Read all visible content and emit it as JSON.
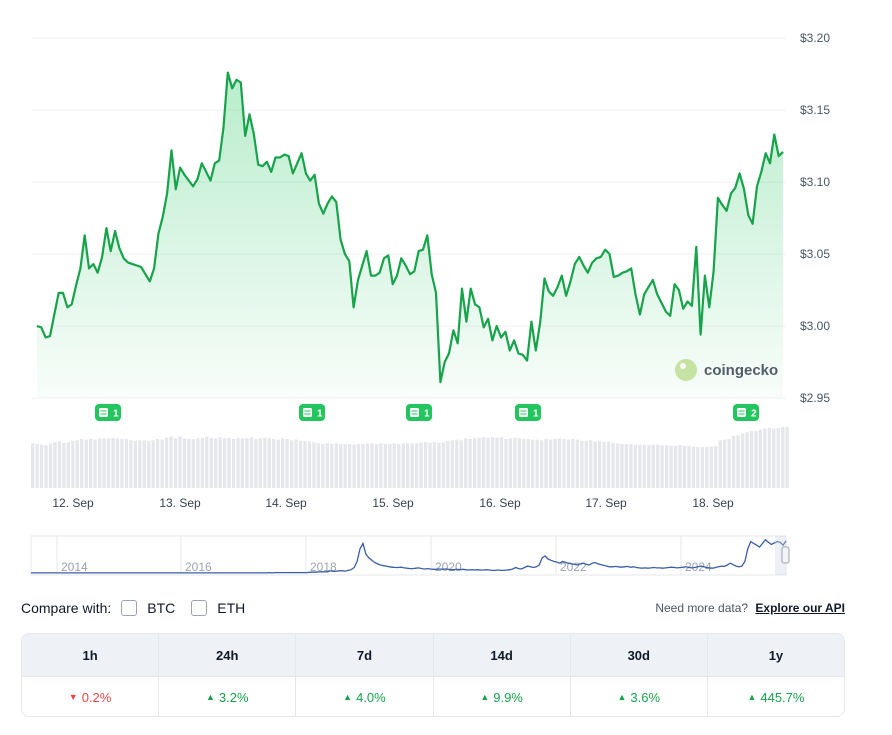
{
  "chart_data": {
    "type": "area",
    "y_axis_ticks": [
      "$3.20",
      "$3.15",
      "$3.10",
      "$3.05",
      "$3.00",
      "$2.95"
    ],
    "ylim": [
      2.95,
      3.2
    ],
    "x_tick_labels": [
      "12. Sep",
      "13. Sep",
      "14. Sep",
      "15. Sep",
      "16. Sep",
      "17. Sep",
      "18. Sep"
    ],
    "series": [
      {
        "values": [
          3.0,
          2.999,
          2.992,
          2.993,
          3.008,
          3.023,
          3.023,
          3.013,
          3.015,
          3.028,
          3.04,
          3.063,
          3.04,
          3.043,
          3.037,
          3.048,
          3.068,
          3.052,
          3.066,
          3.054,
          3.047,
          3.044,
          3.043,
          3.042,
          3.041,
          3.036,
          3.031,
          3.04,
          3.064,
          3.076,
          3.092,
          3.122,
          3.095,
          3.11,
          3.105,
          3.101,
          3.097,
          3.102,
          3.113,
          3.107,
          3.101,
          3.113,
          3.115,
          3.138,
          3.176,
          3.165,
          3.171,
          3.169,
          3.132,
          3.147,
          3.133,
          3.112,
          3.111,
          3.114,
          3.107,
          3.117,
          3.117,
          3.119,
          3.118,
          3.106,
          3.113,
          3.12,
          3.106,
          3.101,
          3.105,
          3.085,
          3.078,
          3.085,
          3.09,
          3.086,
          3.06,
          3.05,
          3.045,
          3.013,
          3.032,
          3.042,
          3.052,
          3.035,
          3.035,
          3.037,
          3.047,
          3.049,
          3.029,
          3.035,
          3.047,
          3.042,
          3.036,
          3.038,
          3.052,
          3.053,
          3.063,
          3.036,
          3.023,
          2.961,
          2.975,
          2.981,
          2.997,
          2.988,
          3.026,
          3.003,
          3.026,
          3.015,
          3.013,
          2.999,
          3.005,
          2.99,
          3.0,
          2.992,
          2.996,
          2.983,
          2.99,
          2.981,
          2.98,
          2.976,
          3.003,
          2.983,
          3.002,
          3.033,
          3.024,
          3.021,
          3.027,
          3.035,
          3.021,
          3.031,
          3.043,
          3.048,
          3.042,
          3.037,
          3.044,
          3.047,
          3.048,
          3.053,
          3.05,
          3.034,
          3.035,
          3.037,
          3.038,
          3.04,
          3.022,
          3.008,
          3.022,
          3.027,
          3.032,
          3.022,
          3.016,
          3.01,
          3.007,
          3.029,
          3.025,
          3.012,
          3.017,
          3.014,
          3.055,
          2.994,
          3.035,
          3.013,
          3.038,
          3.089,
          3.084,
          3.08,
          3.092,
          3.096,
          3.106,
          3.095,
          3.077,
          3.071,
          3.097,
          3.107,
          3.12,
          3.113,
          3.133,
          3.118,
          3.121
        ]
      }
    ],
    "volume_relative": [
      0.72,
      0.71,
      0.7,
      0.69,
      0.72,
      0.74,
      0.75,
      0.73,
      0.74,
      0.76,
      0.77,
      0.79,
      0.78,
      0.79,
      0.78,
      0.8,
      0.8,
      0.8,
      0.81,
      0.8,
      0.79,
      0.79,
      0.77,
      0.76,
      0.77,
      0.77,
      0.76,
      0.77,
      0.79,
      0.78,
      0.81,
      0.83,
      0.8,
      0.83,
      0.8,
      0.79,
      0.79,
      0.8,
      0.81,
      0.83,
      0.81,
      0.8,
      0.82,
      0.8,
      0.81,
      0.79,
      0.8,
      0.8,
      0.8,
      0.82,
      0.79,
      0.8,
      0.81,
      0.8,
      0.79,
      0.78,
      0.8,
      0.79,
      0.77,
      0.78,
      0.76,
      0.76,
      0.75,
      0.74,
      0.72,
      0.71,
      0.72,
      0.71,
      0.72,
      0.71,
      0.71,
      0.71,
      0.7,
      0.71,
      0.71,
      0.72,
      0.72,
      0.71,
      0.72,
      0.71,
      0.71,
      0.72,
      0.71,
      0.72,
      0.72,
      0.72,
      0.72,
      0.73,
      0.74,
      0.73,
      0.74,
      0.73,
      0.74,
      0.76,
      0.77,
      0.78,
      0.77,
      0.8,
      0.79,
      0.8,
      0.81,
      0.82,
      0.81,
      0.82,
      0.81,
      0.82,
      0.79,
      0.8,
      0.81,
      0.8,
      0.79,
      0.79,
      0.78,
      0.78,
      0.77,
      0.79,
      0.78,
      0.79,
      0.8,
      0.79,
      0.78,
      0.79,
      0.78,
      0.76,
      0.76,
      0.77,
      0.75,
      0.76,
      0.74,
      0.75,
      0.73,
      0.72,
      0.71,
      0.71,
      0.71,
      0.7,
      0.7,
      0.7,
      0.69,
      0.7,
      0.7,
      0.69,
      0.69,
      0.68,
      0.68,
      0.69,
      0.68,
      0.68,
      0.67,
      0.66,
      0.66,
      0.66,
      0.67,
      0.68,
      0.77,
      0.78,
      0.79,
      0.84,
      0.85,
      0.88,
      0.9,
      0.92,
      0.92,
      0.94,
      0.96,
      0.97,
      0.96,
      0.97,
      0.98,
      0.99
    ],
    "events": [
      {
        "label": "1"
      },
      {
        "label": "1"
      },
      {
        "label": "1"
      },
      {
        "label": "1"
      },
      {
        "label": "2"
      }
    ],
    "watermark": "coingecko",
    "history_navigator": {
      "year_labels": [
        "2014",
        "2016",
        "2018",
        "2020",
        "2022",
        "2024"
      ],
      "values": [
        0.03,
        0.03,
        0.03,
        0.03,
        0.03,
        0.03,
        0.03,
        0.03,
        0.03,
        0.03,
        0.03,
        0.03,
        0.03,
        0.03,
        0.03,
        0.03,
        0.03,
        0.03,
        0.03,
        0.03,
        0.03,
        0.03,
        0.03,
        0.03,
        0.03,
        0.03,
        0.03,
        0.03,
        0.03,
        0.03,
        0.03,
        0.03,
        0.03,
        0.03,
        0.03,
        0.03,
        0.03,
        0.03,
        0.03,
        0.03,
        0.03,
        0.03,
        0.03,
        0.03,
        0.03,
        0.03,
        0.03,
        0.03,
        0.03,
        0.03,
        0.03,
        0.03,
        0.03,
        0.03,
        0.03,
        0.03,
        0.03,
        0.03,
        0.03,
        0.03,
        0.03,
        0.03,
        0.03,
        0.03,
        0.03,
        0.03,
        0.03,
        0.03,
        0.03,
        0.03,
        0.03,
        0.03,
        0.03,
        0.03,
        0.03,
        0.03,
        0.03,
        0.03,
        0.03,
        0.03,
        0.03,
        0.04,
        0.03,
        0.04,
        0.04,
        0.04,
        0.04,
        0.04,
        0.04,
        0.04,
        0.04,
        0.04,
        0.04,
        0.04,
        0.04,
        0.05,
        0.05,
        0.05,
        0.06,
        0.06,
        0.06,
        0.06,
        0.09,
        0.07,
        0.08,
        0.09,
        0.09,
        0.08,
        0.1,
        0.12,
        0.18,
        0.35,
        0.7,
        0.85,
        0.55,
        0.45,
        0.38,
        0.32,
        0.28,
        0.25,
        0.23,
        0.22,
        0.2,
        0.19,
        0.18,
        0.18,
        0.19,
        0.17,
        0.16,
        0.15,
        0.15,
        0.16,
        0.17,
        0.15,
        0.14,
        0.15,
        0.14,
        0.13,
        0.13,
        0.14,
        0.13,
        0.14,
        0.13,
        0.12,
        0.12,
        0.13,
        0.12,
        0.13,
        0.12,
        0.11,
        0.12,
        0.11,
        0.12,
        0.11,
        0.11,
        0.12,
        0.11,
        0.1,
        0.1,
        0.11,
        0.1,
        0.1,
        0.11,
        0.12,
        0.14,
        0.18,
        0.15,
        0.14,
        0.18,
        0.22,
        0.2,
        0.18,
        0.2,
        0.25,
        0.45,
        0.5,
        0.42,
        0.38,
        0.35,
        0.33,
        0.3,
        0.35,
        0.32,
        0.3,
        0.28,
        0.27,
        0.25,
        0.28,
        0.3,
        0.27,
        0.25,
        0.3,
        0.32,
        0.28,
        0.26,
        0.24,
        0.22,
        0.2,
        0.2,
        0.21,
        0.2,
        0.19,
        0.2,
        0.21,
        0.19,
        0.2,
        0.18,
        0.17,
        0.16,
        0.17,
        0.16,
        0.17,
        0.18,
        0.17,
        0.17,
        0.16,
        0.17,
        0.18,
        0.19,
        0.18,
        0.17,
        0.18,
        0.19,
        0.2,
        0.18,
        0.17,
        0.18,
        0.2,
        0.22,
        0.2,
        0.18,
        0.17,
        0.16,
        0.18,
        0.2,
        0.22,
        0.21,
        0.25,
        0.3,
        0.26,
        0.22,
        0.2,
        0.22,
        0.35,
        0.7,
        0.9,
        0.85,
        0.8,
        0.75,
        0.85,
        0.95,
        0.88,
        0.82,
        0.86,
        0.9,
        0.88,
        0.8,
        0.92
      ]
    }
  },
  "compare": {
    "label": "Compare with:",
    "options": [
      {
        "label": "BTC"
      },
      {
        "label": "ETH"
      }
    ],
    "api_prompt": "Need more data?",
    "api_link": "Explore our API"
  },
  "performance": {
    "headers": [
      "1h",
      "24h",
      "7d",
      "14d",
      "30d",
      "1y"
    ],
    "values": [
      "0.2%",
      "3.2%",
      "4.0%",
      "9.9%",
      "3.6%",
      "445.7%"
    ],
    "directions": [
      "down",
      "up",
      "up",
      "up",
      "up",
      "up"
    ],
    "colors": {
      "up": "#16a34a",
      "down": "#ef4444",
      "line": "#16a34a",
      "nav_line": "#3b5ea6"
    }
  }
}
